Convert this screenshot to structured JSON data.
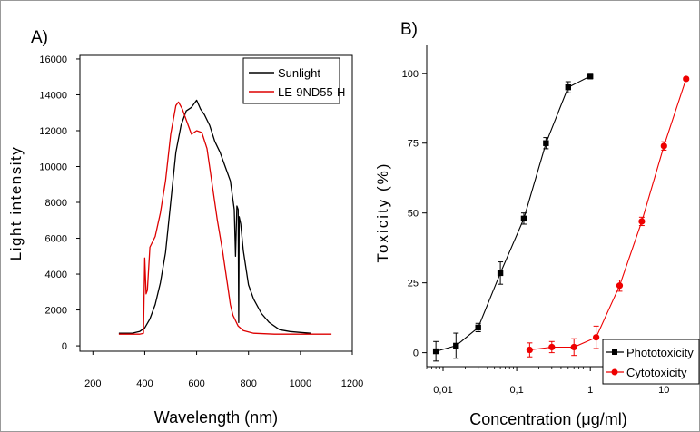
{
  "chart_data": [
    {
      "panel_label": "A)",
      "type": "line",
      "xlabel": "Wavelength (nm)",
      "ylabel": "Light intensity",
      "xlim": [
        150,
        1200
      ],
      "ylim": [
        -300,
        16200
      ],
      "xticks": [
        200,
        400,
        600,
        800,
        1000,
        1200
      ],
      "yticks": [
        0,
        2000,
        4000,
        6000,
        8000,
        10000,
        12000,
        14000,
        16000
      ],
      "grid": false,
      "legend_position": "top-right",
      "series": [
        {
          "name": "Sunlight",
          "color": "#000000",
          "points": [
            [
              300,
              700
            ],
            [
              350,
              700
            ],
            [
              380,
              800
            ],
            [
              400,
              1000
            ],
            [
              420,
              1500
            ],
            [
              440,
              2300
            ],
            [
              460,
              3500
            ],
            [
              480,
              5200
            ],
            [
              500,
              8000
            ],
            [
              520,
              10800
            ],
            [
              540,
              12300
            ],
            [
              560,
              13100
            ],
            [
              580,
              13300
            ],
            [
              600,
              13700
            ],
            [
              615,
              13200
            ],
            [
              630,
              12900
            ],
            [
              650,
              12300
            ],
            [
              670,
              11400
            ],
            [
              690,
              10800
            ],
            [
              710,
              10000
            ],
            [
              730,
              9200
            ],
            [
              745,
              7600
            ],
            [
              750,
              5000
            ],
            [
              755,
              7800
            ],
            [
              760,
              7600
            ],
            [
              762,
              1300
            ],
            [
              764,
              7200
            ],
            [
              770,
              6800
            ],
            [
              780,
              5300
            ],
            [
              800,
              3400
            ],
            [
              820,
              2600
            ],
            [
              850,
              1800
            ],
            [
              880,
              1300
            ],
            [
              920,
              900
            ],
            [
              960,
              800
            ],
            [
              1000,
              750
            ],
            [
              1040,
              700
            ]
          ]
        },
        {
          "name": "LE-9ND55-H",
          "color": "#dd0000",
          "points": [
            [
              300,
              650
            ],
            [
              380,
              650
            ],
            [
              395,
              700
            ],
            [
              400,
              4900
            ],
            [
              405,
              2900
            ],
            [
              410,
              3100
            ],
            [
              420,
              5500
            ],
            [
              440,
              6100
            ],
            [
              460,
              7400
            ],
            [
              480,
              9200
            ],
            [
              500,
              11800
            ],
            [
              520,
              13400
            ],
            [
              530,
              13600
            ],
            [
              545,
              13200
            ],
            [
              560,
              12600
            ],
            [
              580,
              11800
            ],
            [
              600,
              12000
            ],
            [
              620,
              11900
            ],
            [
              640,
              11000
            ],
            [
              660,
              9000
            ],
            [
              680,
              7000
            ],
            [
              700,
              5300
            ],
            [
              710,
              4300
            ],
            [
              720,
              3300
            ],
            [
              730,
              2300
            ],
            [
              740,
              1700
            ],
            [
              760,
              1100
            ],
            [
              780,
              850
            ],
            [
              820,
              700
            ],
            [
              900,
              650
            ],
            [
              1000,
              650
            ],
            [
              1120,
              650
            ]
          ]
        }
      ]
    },
    {
      "panel_label": "B)",
      "type": "line",
      "xlabel": "Concentration (μg/ml)",
      "ylabel": "Toxicity (%)",
      "xscale": "log",
      "xlim": [
        0.006,
        30
      ],
      "ylim": [
        -5,
        110
      ],
      "xticks": [
        0.01,
        0.1,
        1,
        10
      ],
      "xtick_labels": [
        "0,01",
        "0,1",
        "1",
        "10"
      ],
      "yticks": [
        0,
        25,
        50,
        75,
        100
      ],
      "grid": false,
      "legend_position": "bottom-right",
      "series": [
        {
          "name": "Phototoxicity",
          "color": "#000000",
          "marker": "square",
          "x": [
            0.008,
            0.015,
            0.03,
            0.06,
            0.125,
            0.25,
            0.5,
            1.0
          ],
          "y": [
            0.5,
            2.5,
            9,
            28.5,
            48,
            75,
            95,
            99
          ],
          "error": [
            3.5,
            4.5,
            1.5,
            4,
            2,
            2,
            2,
            1
          ]
        },
        {
          "name": "Cytotoxicity",
          "color": "#ee0000",
          "marker": "circle",
          "x": [
            0.15,
            0.3,
            0.6,
            1.2,
            2.5,
            5,
            10,
            20
          ],
          "y": [
            1,
            2,
            2,
            5.5,
            24,
            47,
            74,
            98
          ],
          "error": [
            2.5,
            2,
            3,
            4,
            2,
            1.5,
            1.5,
            0.5
          ]
        }
      ]
    }
  ]
}
